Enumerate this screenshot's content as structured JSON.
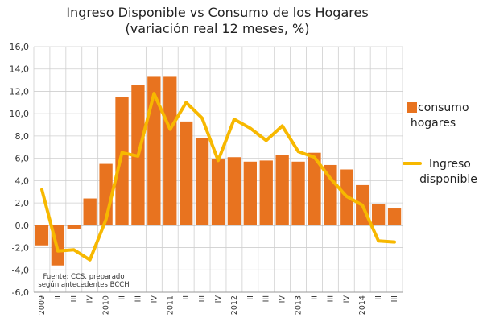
{
  "chart_data": {
    "type": "bar",
    "title": "Ingreso Disponible vs Consumo de los Hogares",
    "subtitle": "(variación real 12 meses, %)",
    "xlabel": "",
    "ylabel": "",
    "ylim": [
      -6,
      16
    ],
    "yticks": [
      "16,0",
      "14,0",
      "12,0",
      "10,0",
      "8,0",
      "6,0",
      "4,0",
      "2,0",
      "0,0",
      "-2,0",
      "-4,0",
      "-6,0"
    ],
    "ytick_values": [
      16,
      14,
      12,
      10,
      8,
      6,
      4,
      2,
      0,
      -2,
      -4,
      -6
    ],
    "categories": [
      "2009",
      "II",
      "III",
      "IV",
      "2010",
      "II",
      "III",
      "IV",
      "2011",
      "II",
      "III",
      "IV",
      "2012",
      "II",
      "III",
      "IV",
      "2013",
      "II",
      "III",
      "IV",
      "2014",
      "II",
      "III"
    ],
    "series": [
      {
        "name": "consumo hogares",
        "kind": "bar",
        "color": "#E8731F",
        "values": [
          -1.8,
          -3.6,
          -0.3,
          2.4,
          5.5,
          11.5,
          12.6,
          13.3,
          13.3,
          9.3,
          7.8,
          5.9,
          6.1,
          5.7,
          5.8,
          6.3,
          5.7,
          6.5,
          5.4,
          5.0,
          3.6,
          1.9,
          1.5
        ]
      },
      {
        "name": "Ingreso disponible",
        "kind": "line",
        "color": "#F7B800",
        "values": [
          3.2,
          -2.3,
          -2.2,
          -3.1,
          0.5,
          6.5,
          6.2,
          11.8,
          8.6,
          11.0,
          9.6,
          5.8,
          9.5,
          8.7,
          7.6,
          8.9,
          6.6,
          6.1,
          4.2,
          2.6,
          1.8,
          -1.4,
          -1.5
        ]
      }
    ],
    "legend": {
      "position": "right",
      "items": [
        {
          "label_line1": "consumo",
          "label_line2": "hogares",
          "color": "#E8731F"
        },
        {
          "label_line1": "Ingreso",
          "label_line2": "disponible",
          "color": "#F7B800"
        }
      ]
    },
    "annotation": {
      "line1": "Fuente: CCS, preparado",
      "line2": "según antecedentes BCCH"
    },
    "grid": true
  }
}
